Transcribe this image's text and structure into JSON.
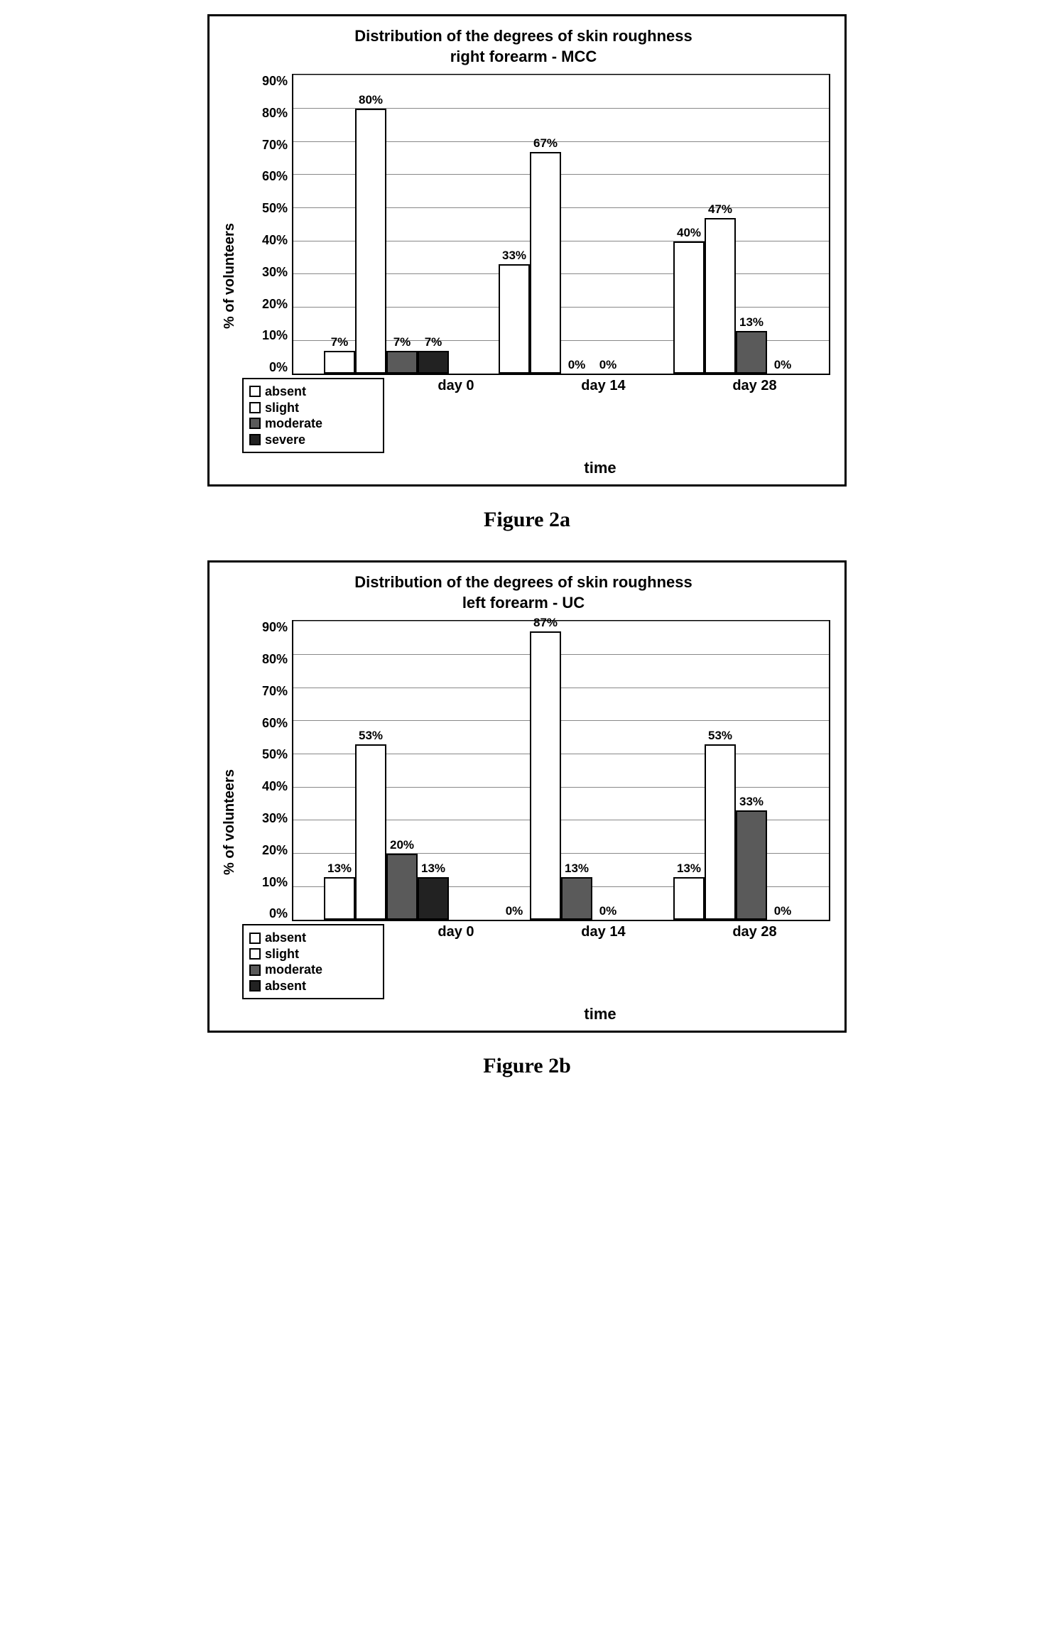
{
  "colors": {
    "absent": "#ffffff",
    "slight": "#ffffff",
    "moderate": "#5a5a5a",
    "severe": "#222222",
    "grid": "#888888",
    "border": "#000000",
    "background": "#ffffff"
  },
  "figures": [
    {
      "id": "fig2a",
      "caption": "Figure 2a",
      "title_line1": "Distribution of the degrees of skin roughness",
      "title_line2": "right forearm - MCC",
      "ylabel": "% of volunteers",
      "xlabel": "time",
      "ylim": [
        0,
        90
      ],
      "ytick_step": 10,
      "yticks": [
        "90%",
        "80%",
        "70%",
        "60%",
        "50%",
        "40%",
        "30%",
        "20%",
        "10%",
        "0%"
      ],
      "categories": [
        "day 0",
        "day 14",
        "day 28"
      ],
      "series": [
        {
          "name": "absent",
          "colorKey": "absent"
        },
        {
          "name": "slight",
          "colorKey": "slight"
        },
        {
          "name": "moderate",
          "colorKey": "moderate"
        },
        {
          "name": "severe",
          "colorKey": "severe"
        }
      ],
      "legend": [
        "absent",
        "slight",
        "moderate",
        "severe"
      ],
      "data": [
        {
          "absent": 7,
          "slight": 80,
          "moderate": 7,
          "severe": 7
        },
        {
          "absent": 33,
          "slight": 67,
          "moderate": 0,
          "severe": 0
        },
        {
          "absent": 40,
          "slight": 47,
          "moderate": 13,
          "severe": 0
        }
      ],
      "labels": [
        {
          "absent": "7%",
          "slight": "80%",
          "moderate": "7%",
          "severe": "7%"
        },
        {
          "absent": "33%",
          "slight": "67%",
          "moderate": "0%",
          "severe": "0%"
        },
        {
          "absent": "40%",
          "slight": "47%",
          "moderate": "13%",
          "severe": "0%"
        }
      ]
    },
    {
      "id": "fig2b",
      "caption": "Figure 2b",
      "title_line1": "Distribution of the degrees of skin roughness",
      "title_line2": "left forearm - UC",
      "ylabel": "% of volunteers",
      "xlabel": "time",
      "ylim": [
        0,
        90
      ],
      "ytick_step": 10,
      "yticks": [
        "90%",
        "80%",
        "70%",
        "60%",
        "50%",
        "40%",
        "30%",
        "20%",
        "10%",
        "0%"
      ],
      "categories": [
        "day 0",
        "day 14",
        "day 28"
      ],
      "series": [
        {
          "name": "absent",
          "colorKey": "absent"
        },
        {
          "name": "slight",
          "colorKey": "slight"
        },
        {
          "name": "moderate",
          "colorKey": "moderate"
        },
        {
          "name": "severe",
          "colorKey": "severe"
        }
      ],
      "legend": [
        "absent",
        "slight",
        "moderate",
        "absent"
      ],
      "data": [
        {
          "absent": 13,
          "slight": 53,
          "moderate": 20,
          "severe": 13
        },
        {
          "absent": 0,
          "slight": 87,
          "moderate": 13,
          "severe": 0
        },
        {
          "absent": 13,
          "slight": 53,
          "moderate": 33,
          "severe": 0
        }
      ],
      "labels": [
        {
          "absent": "13%",
          "slight": "53%",
          "moderate": "20%",
          "severe": "13%"
        },
        {
          "absent": "0%",
          "slight": "87%",
          "moderate": "13%",
          "severe": "0%"
        },
        {
          "absent": "13%",
          "slight": "53%",
          "moderate": "33%",
          "severe": "0%"
        }
      ]
    }
  ]
}
